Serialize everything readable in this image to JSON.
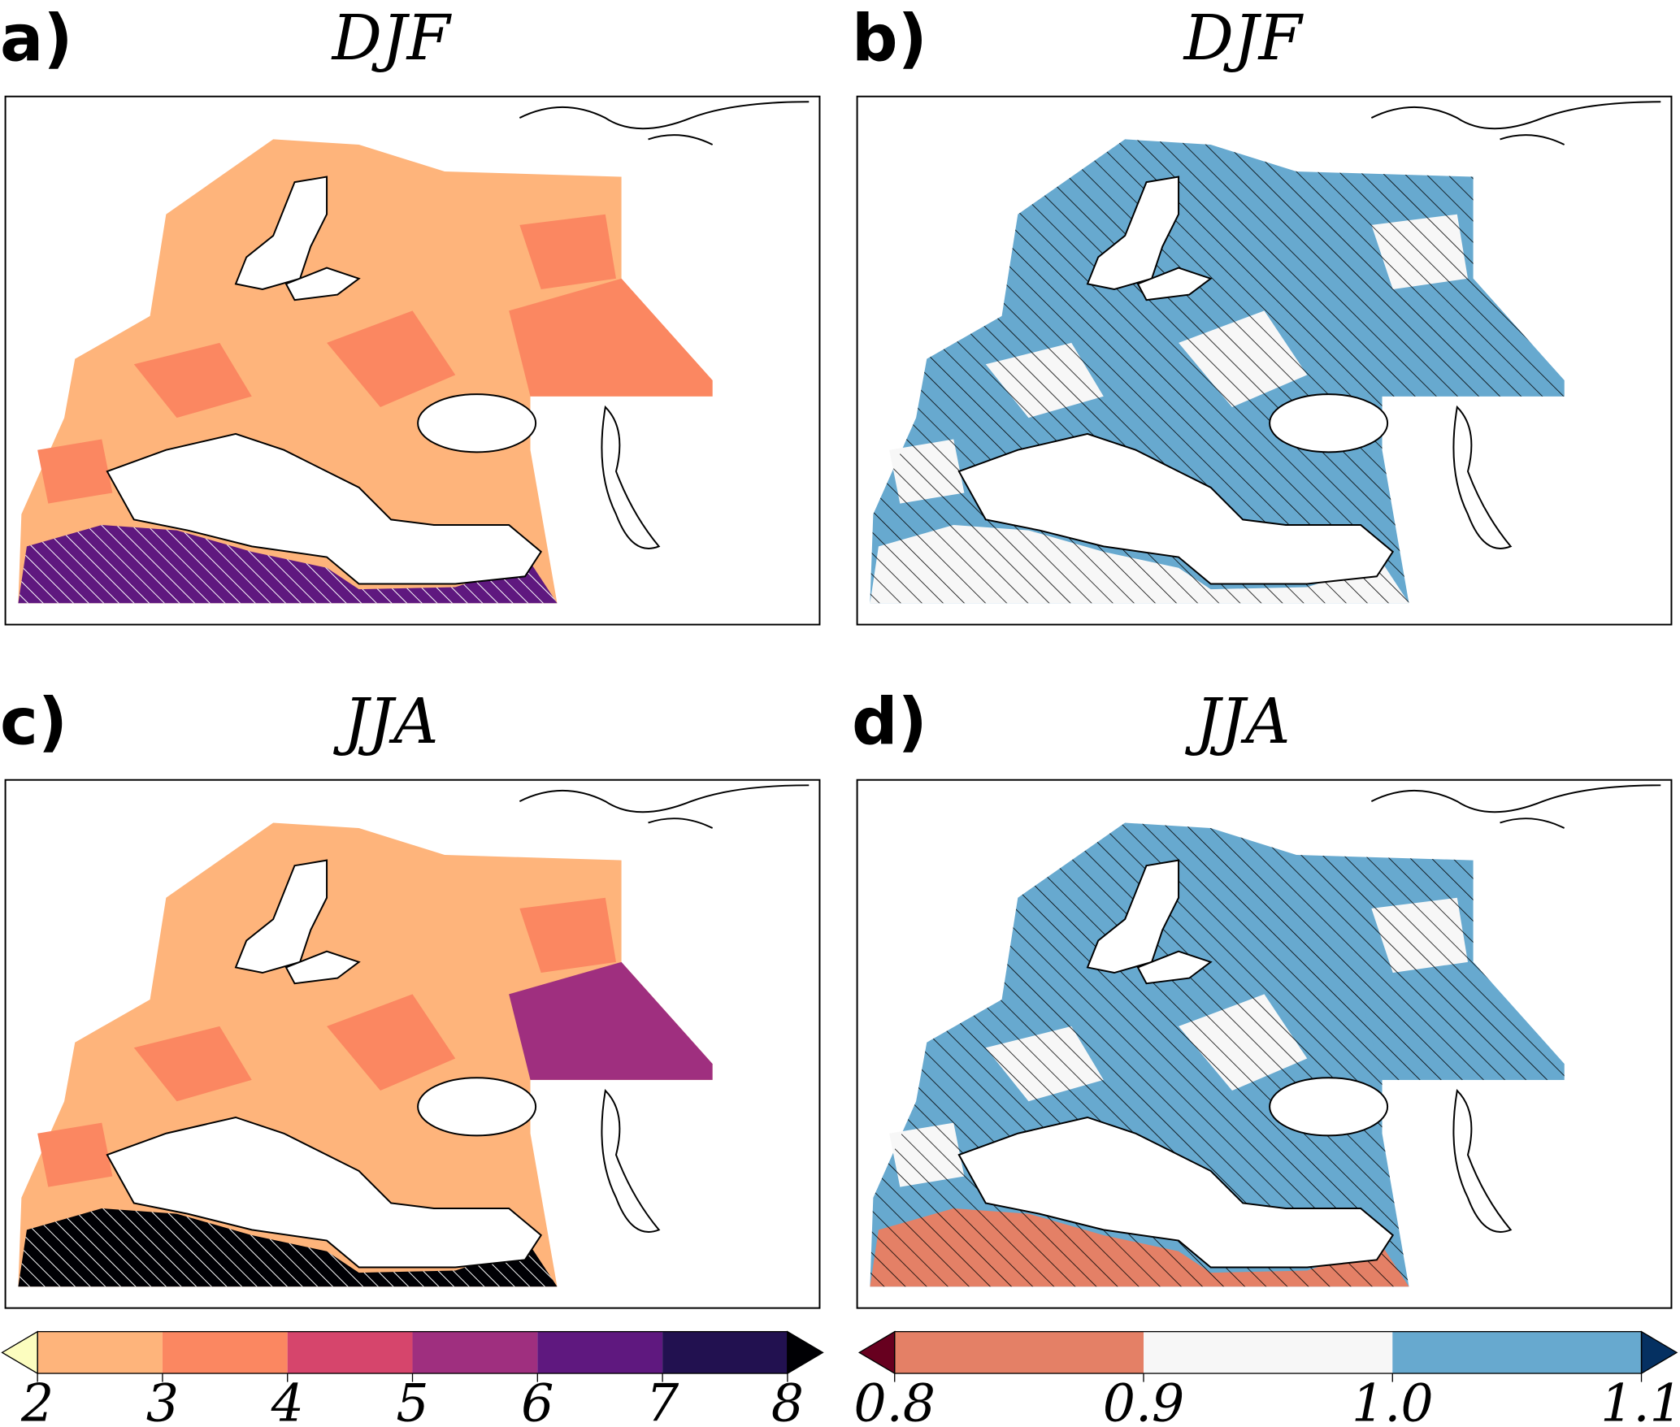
{
  "panels": [
    {
      "label": "a)",
      "title": "DJF"
    },
    {
      "label": "b)",
      "title": "DJF"
    },
    {
      "label": "c)",
      "title": "JJA"
    },
    {
      "label": "d)",
      "title": "JJA"
    }
  ],
  "colorbars": [
    {
      "ticks": [
        2,
        3,
        4,
        5,
        6,
        7,
        8
      ],
      "colors": [
        "#feb47b",
        "#fb8761",
        "#d6456c",
        "#9f2f7f",
        "#5f187f",
        "#221150"
      ],
      "extend_colors": [
        "#fcfdbf",
        "#000004"
      ]
    },
    {
      "ticks": [
        0.8,
        0.9,
        {
          "value": 1.0,
          "label": "1.0"
        },
        1.1
      ],
      "colors": [
        "#e48066",
        "#f7f7f7",
        "#67a9cf"
      ],
      "extend_colors": [
        "#67001f",
        "#053061"
      ]
    }
  ]
}
